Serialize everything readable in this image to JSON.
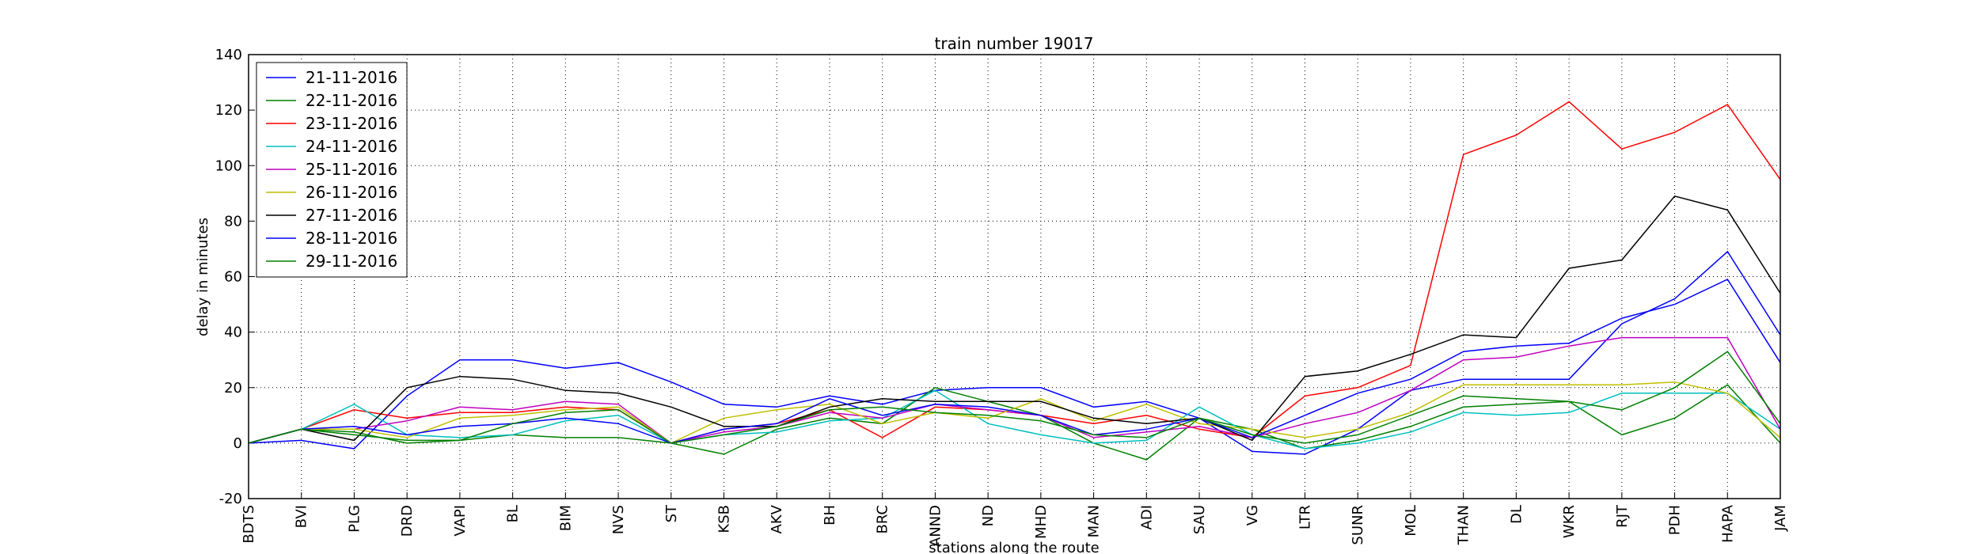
{
  "chart_data": {
    "type": "line",
    "title": "train number 19017",
    "x_label": "stations along the route",
    "y_label": "delay in minutes",
    "categories": [
      "BDTS",
      "BVI",
      "PLG",
      "DRD",
      "VAPI",
      "BL",
      "BIM",
      "NVS",
      "ST",
      "KSB",
      "AKV",
      "BH",
      "BRC",
      "ANND",
      "ND",
      "MHD",
      "MAN",
      "ADI",
      "SAU",
      "VG",
      "LTR",
      "SUNR",
      "MOL",
      "THAN",
      "DL",
      "WKR",
      "RJT",
      "PDH",
      "HAPA",
      "JAM"
    ],
    "ylim": [
      -20,
      140
    ],
    "yticks": [
      -20,
      0,
      20,
      40,
      60,
      80,
      100,
      120,
      140
    ],
    "grid": true,
    "legend": "upper left",
    "series": [
      {
        "name": "21-11-2016",
        "color": "#0000ff",
        "values": [
          0,
          1,
          -2,
          17,
          30,
          30,
          27,
          29,
          22,
          14,
          13,
          17,
          14,
          19,
          20,
          20,
          13,
          15,
          9,
          -3,
          -4,
          5,
          19,
          23,
          23,
          23,
          43,
          52,
          69,
          39
        ]
      },
      {
        "name": "22-11-2016",
        "color": "#008000",
        "values": [
          0,
          5,
          4,
          0,
          1,
          3,
          2,
          2,
          0,
          -4,
          5,
          9,
          7,
          20,
          15,
          10,
          0,
          -6,
          9,
          5,
          -2,
          1,
          6,
          13,
          14,
          15,
          3,
          9,
          21,
          0
        ]
      },
      {
        "name": "23-11-2016",
        "color": "#ff0000",
        "values": [
          0,
          5,
          12,
          9,
          11,
          11,
          13,
          12,
          0,
          5,
          7,
          12,
          2,
          13,
          12,
          10,
          7,
          10,
          5,
          2,
          17,
          20,
          28,
          104,
          111,
          123,
          106,
          112,
          122,
          95
        ]
      },
      {
        "name": "24-11-2016",
        "color": "#00bfbf",
        "values": [
          0,
          5,
          14,
          3,
          2,
          3,
          8,
          10,
          0,
          3,
          4,
          8,
          9,
          19,
          7,
          3,
          0,
          1,
          13,
          3,
          -2,
          0,
          4,
          11,
          10,
          11,
          18,
          18,
          18,
          5
        ]
      },
      {
        "name": "25-11-2016",
        "color": "#bf00bf",
        "values": [
          0,
          5,
          5,
          8,
          13,
          12,
          15,
          14,
          0,
          4,
          6,
          11,
          9,
          14,
          12,
          10,
          2,
          4,
          6,
          2,
          7,
          11,
          19,
          30,
          31,
          35,
          38,
          38,
          38,
          5
        ]
      },
      {
        "name": "26-11-2016",
        "color": "#bfbf00",
        "values": [
          0,
          5,
          5,
          2,
          9,
          10,
          12,
          13,
          0,
          9,
          12,
          14,
          7,
          11,
          9,
          16,
          8,
          14,
          7,
          5,
          2,
          5,
          11,
          21,
          21,
          21,
          21,
          22,
          18,
          2
        ]
      },
      {
        "name": "27-11-2016",
        "color": "#000000",
        "values": [
          0,
          5,
          1,
          20,
          24,
          23,
          19,
          18,
          13,
          6,
          6,
          13,
          16,
          15,
          15,
          15,
          9,
          7,
          9,
          1,
          24,
          26,
          32,
          39,
          38,
          63,
          66,
          89,
          84,
          54
        ]
      },
      {
        "name": "28-11-2016",
        "color": "#0000ff",
        "values": [
          0,
          5,
          6,
          3,
          6,
          7,
          9,
          7,
          0,
          5,
          7,
          16,
          10,
          14,
          13,
          10,
          3,
          5,
          9,
          2,
          10,
          18,
          23,
          33,
          35,
          36,
          45,
          50,
          59,
          29
        ]
      },
      {
        "name": "29-11-2016",
        "color": "#008000",
        "values": [
          0,
          5,
          3,
          1,
          1,
          7,
          11,
          12,
          0,
          3,
          6,
          12,
          13,
          11,
          10,
          8,
          3,
          2,
          9,
          3,
          0,
          3,
          10,
          17,
          16,
          15,
          12,
          20,
          33,
          7
        ]
      }
    ]
  }
}
